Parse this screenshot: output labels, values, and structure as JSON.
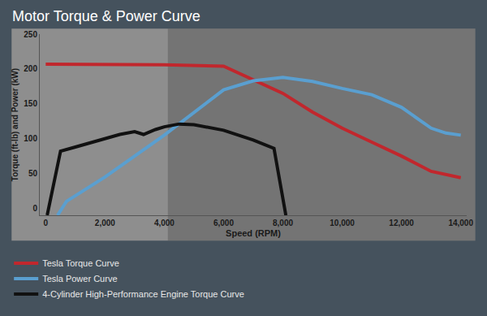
{
  "chart_data": {
    "type": "line",
    "title": "Motor Torque & Power Curve",
    "x_label": "Speed (RPM)",
    "y_label": "Torque (ft-lb) and Power (kW)",
    "xlim": [
      -200,
      14200
    ],
    "ylim": [
      -10,
      250
    ],
    "xticks": [
      0,
      {
        "value": 2000,
        "label": "2,000"
      },
      {
        "value": 4000,
        "label": "4,000"
      },
      {
        "value": 6000,
        "label": "6,000"
      },
      {
        "value": 8000,
        "label": "8,000"
      },
      {
        "value": 10000,
        "label": "10,000"
      },
      {
        "value": 12000,
        "label": "12,000"
      },
      {
        "value": 14000,
        "label": "14,000"
      }
    ],
    "yticks": [
      0,
      50,
      100,
      150,
      200,
      250
    ],
    "grid": false,
    "legend": "bottom left",
    "series": [
      {
        "name": "Tesla Torque Curve",
        "color": "#c1272d",
        "line_style": "solid",
        "x": [
          0,
          2000,
          4000,
          6000,
          7000,
          8000,
          9000,
          10000,
          11000,
          12000,
          13000,
          14000
        ],
        "values": [
          207,
          207,
          206,
          204,
          185,
          165,
          138,
          115,
          95,
          75,
          53,
          44
        ]
      },
      {
        "name": "Tesla Power Curve",
        "color": "#5a9fd0",
        "line_style": "solid",
        "x": [
          400,
          700,
          2000,
          4000,
          6000,
          7000,
          8000,
          9000,
          10000,
          11000,
          12000,
          13000,
          13500,
          14000
        ],
        "values": [
          -10,
          10,
          45,
          105,
          170,
          183,
          188,
          182,
          172,
          163,
          145,
          115,
          108,
          105
        ]
      },
      {
        "name": "4-Cylinder High-Performance Engine Torque Curve",
        "color": "#111111",
        "line_style": "solid",
        "x": [
          50,
          500,
          1000,
          2000,
          2500,
          3000,
          3300,
          3700,
          4000,
          4500,
          5000,
          6000,
          7000,
          7700,
          8100
        ],
        "values": [
          -10,
          82,
          88,
          100,
          106,
          110,
          106,
          113,
          117,
          121,
          120,
          112,
          98,
          86,
          -10
        ]
      }
    ]
  }
}
